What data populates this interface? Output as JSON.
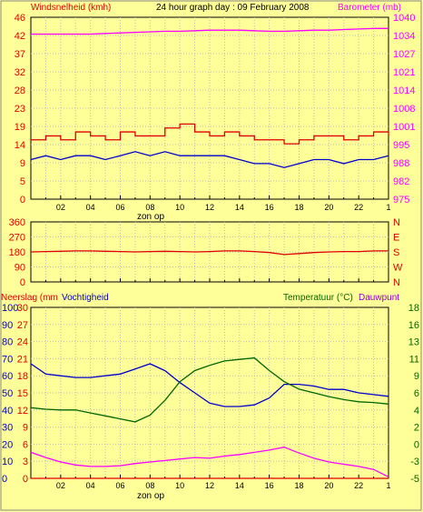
{
  "header": {
    "title": "24 hour graph day : 09 February 2008",
    "left_label": "Windsnelheid (kmh)",
    "right_label": "Barometer (mb)"
  },
  "colors": {
    "background": "#ffff99",
    "red": "#e00000",
    "blue": "#0000cc",
    "magenta": "#ff00ff",
    "green": "#006600",
    "purple": "#9900cc"
  },
  "x_ticks": [
    "02",
    "04",
    "06",
    "08",
    "10",
    "12",
    "14",
    "16",
    "18",
    "20",
    "22",
    "1"
  ],
  "x_note": "zon op",
  "chart_data": [
    {
      "type": "line",
      "name": "wind-barometer",
      "title": "24 hour graph day : 09 February 2008",
      "y_left": {
        "label": "Windsnelheid (kmh)",
        "range": [
          0,
          46
        ],
        "ticks": [
          "0",
          "5",
          "9",
          "14",
          "19",
          "23",
          "28",
          "32",
          "37",
          "42",
          "46"
        ]
      },
      "y_right": {
        "label": "Barometer (mb)",
        "range": [
          975,
          1040
        ],
        "ticks": [
          "975",
          "982",
          "988",
          "995",
          "1001",
          "1008",
          "1014",
          "1021",
          "1027",
          "1034",
          "1040"
        ]
      },
      "x": [
        0,
        1,
        2,
        3,
        4,
        5,
        6,
        7,
        8,
        9,
        10,
        11,
        12,
        13,
        14,
        15,
        16,
        17,
        18,
        19,
        20,
        21,
        22,
        23,
        24
      ],
      "series": [
        {
          "axis": "right",
          "color": "#ff00ff",
          "values": [
            1034,
            1034,
            1034,
            1034,
            1034,
            1034.2,
            1034.4,
            1034.6,
            1034.8,
            1035,
            1035,
            1035.2,
            1035.4,
            1035.4,
            1035.4,
            1035.2,
            1035,
            1035,
            1035.2,
            1035.4,
            1035.4,
            1035.6,
            1035.8,
            1036,
            1036
          ]
        },
        {
          "axis": "left",
          "color": "#e00000",
          "values": [
            15,
            16,
            15,
            17,
            16,
            15,
            17,
            16,
            16,
            18,
            19,
            17,
            16,
            17,
            16,
            15,
            15,
            14,
            15,
            16,
            16,
            15,
            16,
            17,
            16
          ]
        },
        {
          "axis": "left",
          "color": "#0000cc",
          "values": [
            10,
            11,
            10,
            11,
            11,
            10,
            11,
            12,
            11,
            12,
            11,
            11,
            11,
            11,
            10,
            9,
            9,
            8,
            9,
            10,
            10,
            9,
            10,
            10,
            11
          ]
        }
      ]
    },
    {
      "type": "line",
      "name": "wind-direction",
      "y_left": {
        "ticks": [
          "0",
          "90",
          "180",
          "270",
          "360"
        ],
        "range": [
          0,
          360
        ]
      },
      "y_right": {
        "ticks": [
          "N",
          "W",
          "S",
          "E",
          "N"
        ]
      },
      "x": [
        0,
        1,
        2,
        3,
        4,
        5,
        6,
        7,
        8,
        9,
        10,
        11,
        12,
        13,
        14,
        15,
        16,
        17,
        18,
        19,
        20,
        21,
        22,
        23,
        24
      ],
      "series": [
        {
          "color": "#e00000",
          "values": [
            180,
            182,
            184,
            186,
            186,
            184,
            182,
            180,
            182,
            184,
            182,
            180,
            182,
            186,
            186,
            182,
            176,
            164,
            170,
            176,
            180,
            182,
            182,
            186,
            186
          ]
        }
      ]
    },
    {
      "type": "line",
      "name": "rain-humidity-temperature",
      "y_left_humidity": {
        "label": "Vochtigheid",
        "range": [
          0,
          100
        ],
        "ticks": [
          "0",
          "10",
          "20",
          "30",
          "40",
          "50",
          "60",
          "70",
          "80",
          "90",
          "100"
        ]
      },
      "y_left_rain": {
        "label": "Neerslag (mm",
        "range": [
          0,
          30
        ],
        "ticks": [
          "0",
          "3",
          "6",
          "9",
          "12",
          "15",
          "18",
          "21",
          "24",
          "27",
          "30"
        ]
      },
      "y_right": {
        "label": "Temperatuur (°C)",
        "label2": "Dauwpunt",
        "range": [
          -5,
          18
        ],
        "ticks": [
          "-5",
          "-3",
          "0",
          "2",
          "4",
          "6",
          "9",
          "11",
          "13",
          "16",
          "18"
        ]
      },
      "x": [
        0,
        1,
        2,
        3,
        4,
        5,
        6,
        7,
        8,
        9,
        10,
        11,
        12,
        13,
        14,
        15,
        16,
        17,
        18,
        19,
        20,
        21,
        22,
        23,
        24
      ],
      "series": [
        {
          "axis": "humidity",
          "color": "#0000cc",
          "values": [
            67,
            61,
            60,
            59,
            59,
            60,
            61,
            64,
            67,
            63,
            56,
            50,
            44,
            42,
            42,
            43,
            47,
            55,
            55,
            54,
            52,
            52,
            50,
            49,
            48
          ]
        },
        {
          "axis": "temp",
          "color": "#006600",
          "values": [
            4.5,
            4.3,
            4.2,
            4.2,
            3.8,
            3.4,
            3.0,
            2.6,
            3.5,
            5.5,
            8.0,
            9.5,
            10.2,
            10.8,
            11.0,
            11.2,
            9.5,
            8.0,
            7.0,
            6.5,
            6.0,
            5.6,
            5.3,
            5.2,
            5.0
          ]
        },
        {
          "axis": "temp",
          "color": "#ff00ff",
          "values": [
            -1.5,
            -2.2,
            -2.8,
            -3.2,
            -3.4,
            -3.4,
            -3.3,
            -3.0,
            -2.8,
            -2.6,
            -2.4,
            -2.2,
            -2.3,
            -2.0,
            -1.8,
            -1.5,
            -1.2,
            -0.8,
            -1.6,
            -2.3,
            -2.8,
            -3.1,
            -3.4,
            -3.8,
            -4.8
          ]
        },
        {
          "axis": "rain",
          "color": "#e00000",
          "values": [
            0,
            0,
            0,
            0,
            0,
            0,
            0,
            0,
            0,
            0,
            0,
            0,
            0,
            0,
            0,
            0,
            0,
            0,
            0,
            0,
            0,
            0,
            0,
            0,
            0
          ]
        }
      ]
    }
  ]
}
